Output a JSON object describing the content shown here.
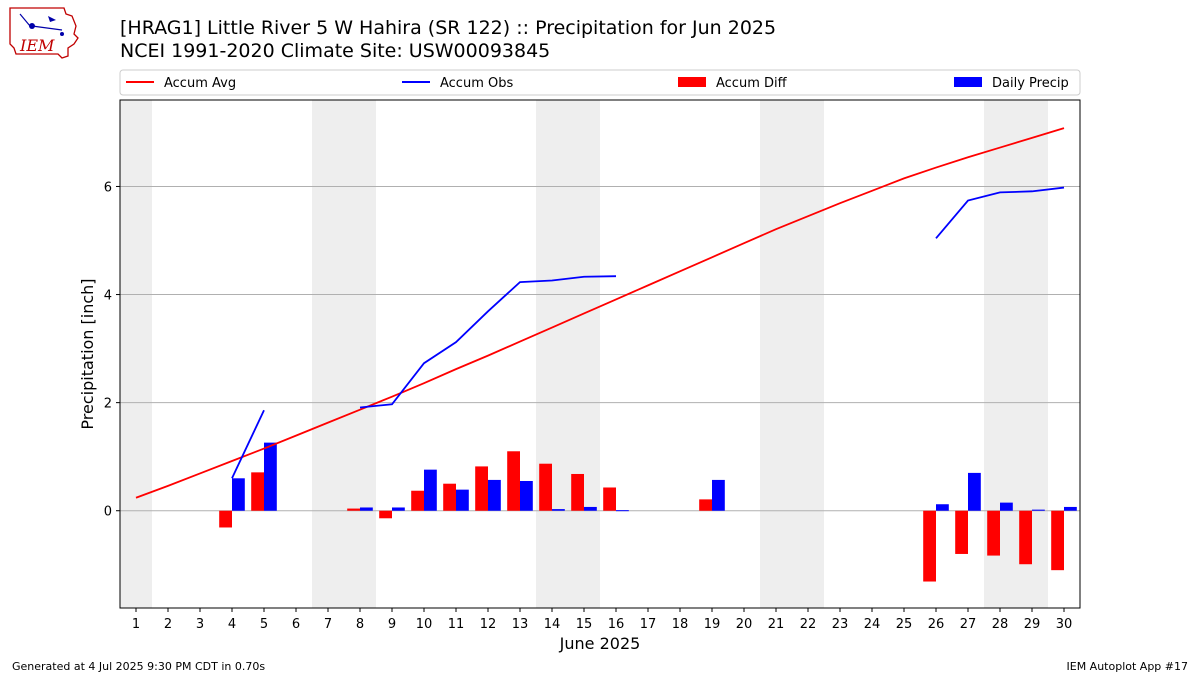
{
  "header": {
    "title_line1": "[HRAG1] Little River 5 W Hahira (SR 122) :: Precipitation for Jun 2025",
    "title_line2": "NCEI 1991-2020 Climate Site: USW00093845",
    "logo_text": "IEM"
  },
  "footer": {
    "left": "Generated at 4 Jul 2025 9:30 PM CDT in 0.70s",
    "right": "IEM Autoplot App #17"
  },
  "colors": {
    "avg": "#ff0000",
    "obs": "#0000ff",
    "diff": "#ff0000",
    "daily": "#0000ff",
    "weekend_shade": "#eeeeee",
    "grid": "#b0b0b0"
  },
  "chart_data": {
    "type": "bar",
    "xlabel": "June 2025",
    "ylabel": "Precipitation [inch]",
    "xlim": [
      0.5,
      30.5
    ],
    "ylim": [
      -1.8,
      7.6
    ],
    "yticks": [
      0,
      2,
      4,
      6
    ],
    "grid": "horizontal",
    "legend_placement": "top, above plot",
    "legend": [
      "Accum Avg",
      "Accum Obs",
      "Accum Diff",
      "Daily Precip"
    ],
    "days": [
      1,
      2,
      3,
      4,
      5,
      6,
      7,
      8,
      9,
      10,
      11,
      12,
      13,
      14,
      15,
      16,
      17,
      18,
      19,
      20,
      21,
      22,
      23,
      24,
      25,
      26,
      27,
      28,
      29,
      30
    ],
    "weekend_days": [
      1,
      7,
      8,
      14,
      15,
      21,
      22,
      28,
      29
    ],
    "series": [
      {
        "name": "Accum Avg",
        "kind": "line",
        "values": [
          0.24,
          0.46,
          0.69,
          0.92,
          1.15,
          1.39,
          1.63,
          1.87,
          2.11,
          2.36,
          2.62,
          2.87,
          3.13,
          3.39,
          3.65,
          3.91,
          4.17,
          4.43,
          4.69,
          4.95,
          5.21,
          5.45,
          5.69,
          5.92,
          6.15,
          6.35,
          6.54,
          6.72,
          6.9,
          7.08
        ]
      },
      {
        "name": "Accum Obs",
        "kind": "line",
        "values": [
          null,
          null,
          null,
          0.6,
          1.86,
          null,
          null,
          1.91,
          1.97,
          2.73,
          3.12,
          3.69,
          4.23,
          4.26,
          4.33,
          4.34,
          null,
          null,
          null,
          null,
          null,
          null,
          null,
          null,
          null,
          5.04,
          5.74,
          5.89,
          5.91,
          5.98
        ]
      },
      {
        "name": "Accum Diff",
        "kind": "bar",
        "values": [
          null,
          null,
          null,
          -0.31,
          0.71,
          null,
          null,
          0.04,
          -0.14,
          0.37,
          0.5,
          0.82,
          1.1,
          0.87,
          0.68,
          0.43,
          null,
          null,
          0.21,
          null,
          null,
          null,
          null,
          null,
          null,
          -1.31,
          -0.8,
          -0.83,
          -0.99,
          -1.1
        ]
      },
      {
        "name": "Daily Precip",
        "kind": "bar",
        "values": [
          null,
          null,
          null,
          0.6,
          1.26,
          null,
          null,
          0.06,
          0.06,
          0.76,
          0.39,
          0.57,
          0.55,
          0.03,
          0.07,
          0.01,
          null,
          null,
          0.57,
          null,
          null,
          null,
          null,
          null,
          null,
          0.12,
          0.7,
          0.15,
          0.02,
          0.07
        ]
      }
    ]
  }
}
